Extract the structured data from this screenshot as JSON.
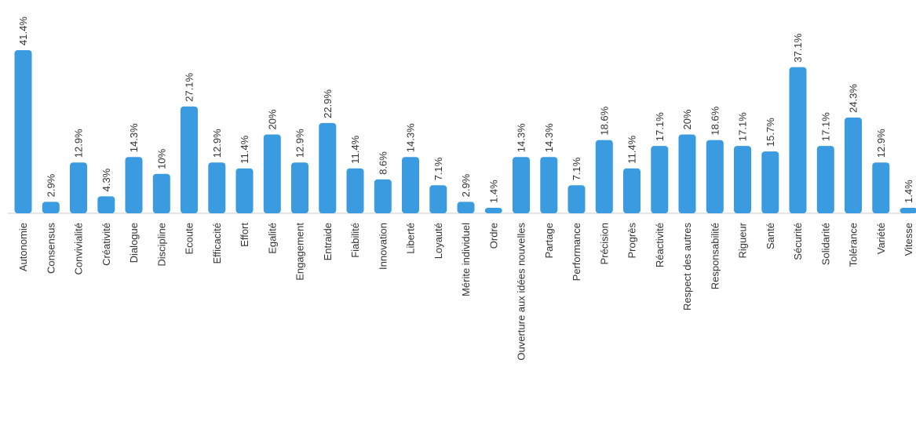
{
  "chart_data": {
    "type": "bar",
    "title": "",
    "xlabel": "",
    "ylabel": "",
    "ylim": [
      0,
      41.4
    ],
    "grid": false,
    "legend": "none",
    "bar_color": "#3a9be0",
    "value_suffix": "%",
    "categories": [
      "Autonomie",
      "Consensus",
      "Convivialité",
      "Créativité",
      "Dialogue",
      "Discipline",
      "Ecoute",
      "Efficacité",
      "Effort",
      "Egalité",
      "Engagement",
      "Entraide",
      "Fiabilité",
      "Innovation",
      "Liberté",
      "Loyauté",
      "Mérite individuel",
      "Ordre",
      "Ouverture aux idées nouvelles",
      "Partage",
      "Performance",
      "Précision",
      "Progrès",
      "Réactivité",
      "Respect des autres",
      "Responsabilité",
      "Rigueur",
      "Santé",
      "Sécurité",
      "Solidarité",
      "Tolérance",
      "Variété",
      "Vitesse"
    ],
    "values": [
      41.4,
      2.9,
      12.9,
      4.3,
      14.3,
      10,
      27.1,
      12.9,
      11.4,
      20,
      12.9,
      22.9,
      11.4,
      8.6,
      14.3,
      7.1,
      2.9,
      1.4,
      14.3,
      14.3,
      7.1,
      18.6,
      11.4,
      17.1,
      20,
      18.6,
      17.1,
      15.7,
      37.1,
      17.1,
      24.3,
      12.9,
      1.4
    ]
  }
}
